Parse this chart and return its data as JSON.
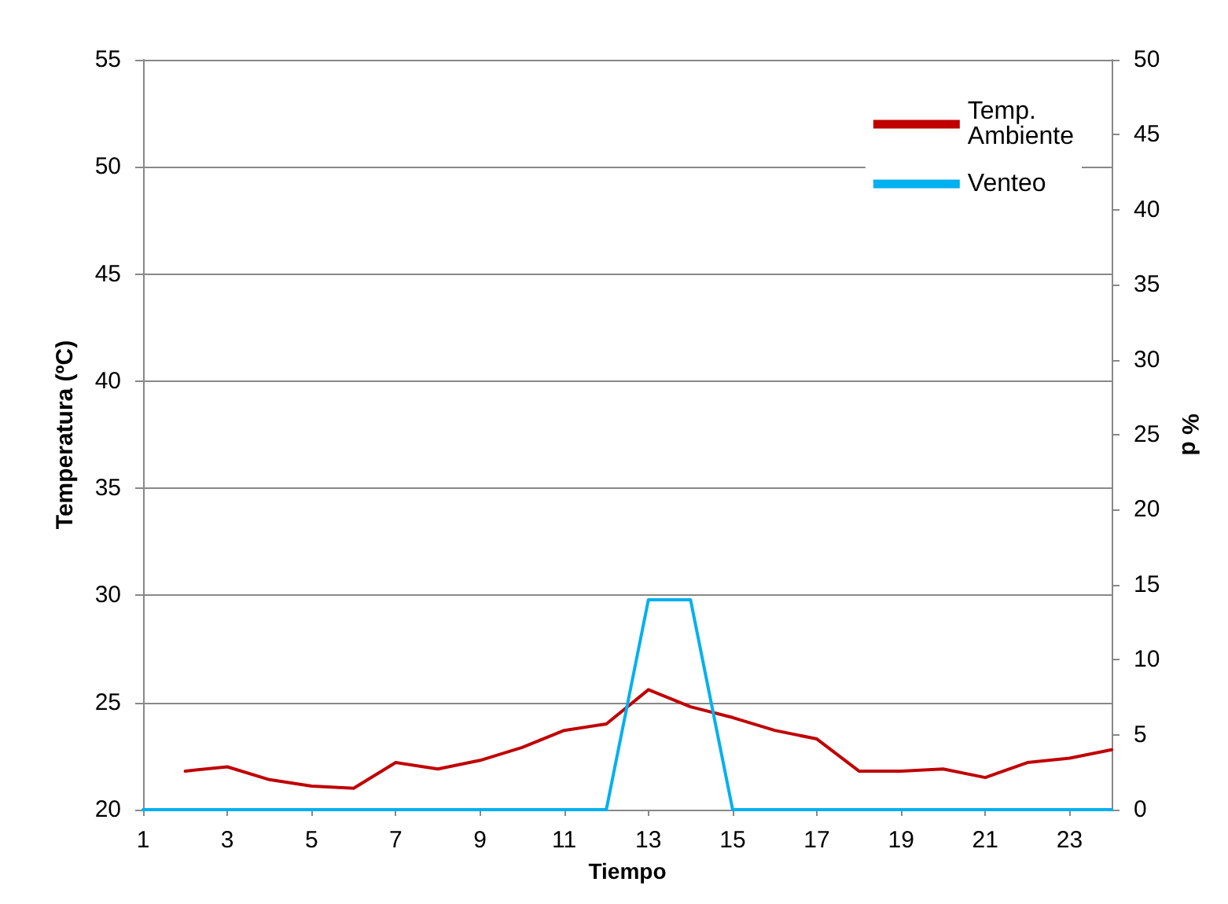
{
  "chart_data": {
    "type": "line",
    "xlabel": "Tiempo",
    "ylabel": "Temperatura (ºC)",
    "y2label": "% d",
    "xlim": [
      1,
      24
    ],
    "xticks": [
      1,
      3,
      5,
      7,
      9,
      11,
      13,
      15,
      17,
      19,
      21,
      23
    ],
    "ylim": [
      20,
      55
    ],
    "yticks": [
      20,
      25,
      30,
      35,
      40,
      45,
      50,
      55
    ],
    "y2lim": [
      0,
      50
    ],
    "y2ticks": [
      0,
      5,
      10,
      15,
      20,
      25,
      30,
      35,
      40,
      45,
      50
    ],
    "grid": "y",
    "legend": "top right",
    "marker": "none",
    "line_style": "solid",
    "series": [
      {
        "name": "Temp. Ambiente",
        "color": "#c00000",
        "x": [
          2,
          3,
          4,
          5,
          6,
          7,
          8,
          9,
          10,
          11,
          12,
          13,
          14,
          15,
          16,
          17,
          18,
          19,
          20,
          21,
          22,
          23,
          24
        ],
        "values": [
          21.8,
          22.0,
          21.4,
          21.1,
          21.0,
          22.2,
          21.9,
          22.3,
          22.9,
          23.7,
          24.0,
          25.6,
          24.8,
          24.3,
          23.7,
          23.3,
          21.8,
          21.8,
          21.9,
          21.5,
          22.2,
          22.4,
          22.8
        ]
      },
      {
        "name": "Venteo",
        "color": "#00b0f0",
        "axis": "y2",
        "x": [
          1,
          2,
          3,
          4,
          5,
          6,
          7,
          8,
          9,
          10,
          11,
          12,
          13,
          14,
          15,
          16,
          17,
          18,
          19,
          20,
          21,
          22,
          23,
          24
        ],
        "values": [
          0,
          0,
          0,
          0,
          0,
          0,
          0,
          0,
          0,
          0,
          0,
          0,
          14,
          14,
          0,
          0,
          0,
          0,
          0,
          0,
          0,
          0,
          0,
          0
        ]
      }
    ]
  }
}
